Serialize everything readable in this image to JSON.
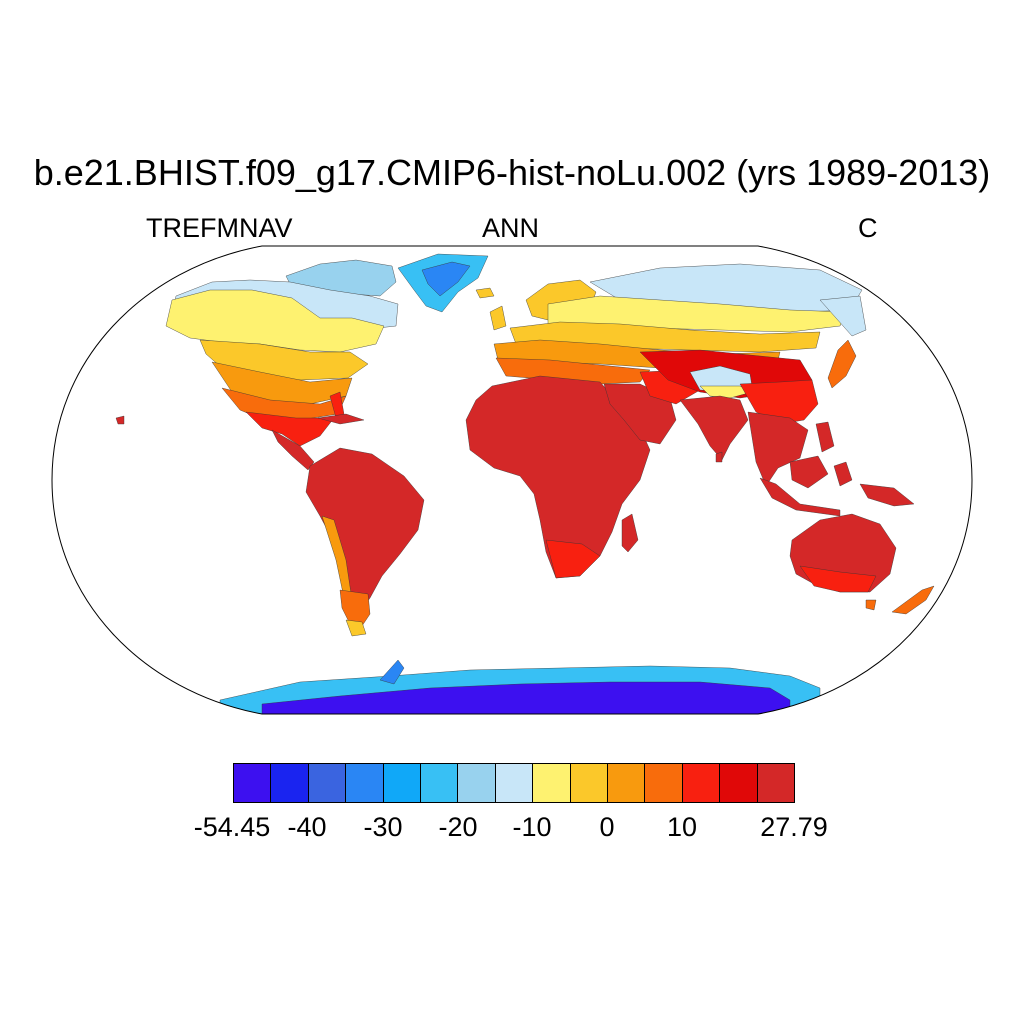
{
  "title": "b.e21.BHIST.f09_g17.CMIP6-hist-noLu.002 (yrs 1989-2013)",
  "subtitles": {
    "left": "TREFMNAV",
    "center": "ANN",
    "right": "C"
  },
  "colorbar": {
    "colors": [
      "#3d10f0",
      "#1a24f0",
      "#3a64e0",
      "#2a86f4",
      "#10a8f8",
      "#38c0f4",
      "#98d2ee",
      "#c8e6f8",
      "#fef270",
      "#fbc82a",
      "#f89a0e",
      "#f86c0c",
      "#f82010",
      "#e00808",
      "#d42828"
    ],
    "tick_labels": [
      "-54.45",
      "-40",
      "-30",
      "-20",
      "-10",
      "0",
      "10",
      "27.79"
    ]
  },
  "palette": {
    "deep_red": "#d42828",
    "red": "#e00808",
    "bright_red": "#f82010",
    "orange_red": "#f86c0c",
    "orange": "#f89a0e",
    "gold": "#fbc82a",
    "yellow": "#fef270",
    "pale_blue": "#c8e6f8",
    "light_blue": "#98d2ee",
    "sky_blue": "#38c0f4",
    "blue": "#10a8f8",
    "mid_blue": "#2a86f4",
    "royal_blue": "#3a64e0",
    "dark_blue": "#1a24f0",
    "violet_blue": "#3d10f0"
  }
}
